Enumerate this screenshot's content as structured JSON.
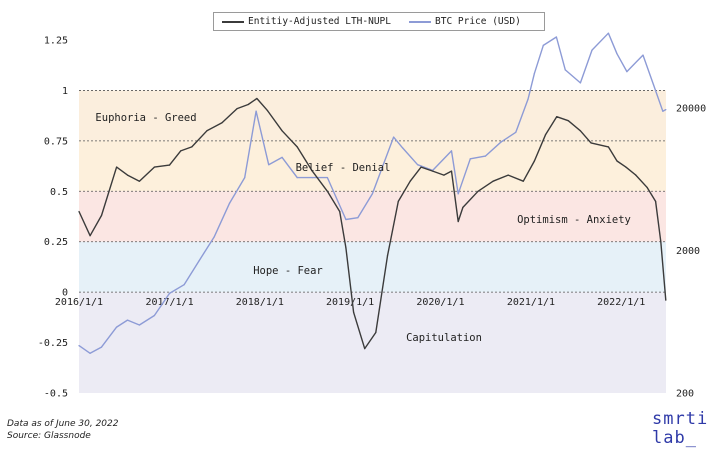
{
  "legend": {
    "lth_label": "Entitiy-Adjusted LTH-NUPL",
    "btc_label": "BTC Price (USD)"
  },
  "footnote": {
    "line1": "Data as of June 30, 2022",
    "line2": "Source: Glassnode"
  },
  "brand": {
    "line1": "smrti",
    "line2": "lab_"
  },
  "colors": {
    "lth": "#3b3b3b",
    "btc": "#8d9bd6",
    "btc_dark": "#2e3f9a",
    "euphoria": "#fbeedd",
    "belief": "#fdf0dc",
    "optimism": "#fbe6e3",
    "hope": "#e6f1f8",
    "capitulation": "#ecebf4"
  },
  "chart_data": {
    "type": "line",
    "left_axis": {
      "ylim": [
        -0.5,
        1.25
      ],
      "ticks": [
        "1.25",
        "1",
        "0.75",
        "0.5",
        "0.25",
        "0",
        "-0.25",
        "-0.5"
      ]
    },
    "right_axis": {
      "scale": "log",
      "ticks": [
        "20000",
        "2000",
        "200"
      ],
      "ylim": [
        200,
        60000
      ]
    },
    "x_ticks": [
      "2016/1/1",
      "2017/1/1",
      "2018/1/1",
      "2019/1/1",
      "2020/1/1",
      "2021/1/1",
      "2022/1/1"
    ],
    "zones": [
      {
        "label": "Euphoria - Greed",
        "from": 0.75,
        "to": 1.0
      },
      {
        "label": "Belief - Denial",
        "from": 0.5,
        "to": 0.75
      },
      {
        "label": "Optimism - Anxiety",
        "from": 0.25,
        "to": 0.5
      },
      {
        "label": "Hope - Fear",
        "from": 0.0,
        "to": 0.25
      },
      {
        "label": "Capitulation",
        "from": -0.5,
        "to": 0.0
      }
    ],
    "series": [
      {
        "name": "Entitiy-Adjusted LTH-NUPL",
        "axis": "left",
        "x": [
          "2016-01-01",
          "2016-02-15",
          "2016-04-01",
          "2016-06-01",
          "2016-07-15",
          "2016-09-01",
          "2016-11-01",
          "2017-01-01",
          "2017-02-15",
          "2017-04-01",
          "2017-06-01",
          "2017-08-01",
          "2017-10-01",
          "2017-11-15",
          "2017-12-20",
          "2018-02-01",
          "2018-04-01",
          "2018-06-01",
          "2018-08-01",
          "2018-10-01",
          "2018-11-20",
          "2018-12-15",
          "2019-01-15",
          "2019-03-01",
          "2019-04-15",
          "2019-06-01",
          "2019-07-15",
          "2019-09-01",
          "2019-10-15",
          "2019-12-01",
          "2020-01-15",
          "2020-02-15",
          "2020-03-13",
          "2020-04-01",
          "2020-06-01",
          "2020-08-01",
          "2020-10-01",
          "2020-12-01",
          "2021-01-15",
          "2021-03-01",
          "2021-04-15",
          "2021-06-01",
          "2021-07-20",
          "2021-09-01",
          "2021-11-10",
          "2021-12-15",
          "2022-01-20",
          "2022-03-01",
          "2022-04-15",
          "2022-05-20",
          "2022-06-10",
          "2022-06-30"
        ],
        "values": [
          0.4,
          0.28,
          0.38,
          0.62,
          0.58,
          0.55,
          0.62,
          0.63,
          0.7,
          0.72,
          0.8,
          0.84,
          0.91,
          0.93,
          0.96,
          0.9,
          0.8,
          0.72,
          0.6,
          0.5,
          0.4,
          0.22,
          -0.1,
          -0.28,
          -0.2,
          0.18,
          0.45,
          0.55,
          0.62,
          0.6,
          0.58,
          0.6,
          0.35,
          0.42,
          0.5,
          0.55,
          0.58,
          0.55,
          0.65,
          0.78,
          0.87,
          0.85,
          0.8,
          0.74,
          0.72,
          0.65,
          0.62,
          0.58,
          0.52,
          0.45,
          0.25,
          -0.04
        ]
      },
      {
        "name": "BTC Price (USD)",
        "axis": "right",
        "x": [
          "2016-01-01",
          "2016-02-15",
          "2016-04-01",
          "2016-06-01",
          "2016-07-15",
          "2016-09-01",
          "2016-11-01",
          "2017-01-01",
          "2017-03-01",
          "2017-05-01",
          "2017-07-01",
          "2017-09-01",
          "2017-11-01",
          "2017-12-17",
          "2018-02-06",
          "2018-04-01",
          "2018-06-01",
          "2018-08-01",
          "2018-10-01",
          "2018-12-15",
          "2019-02-01",
          "2019-04-01",
          "2019-06-26",
          "2019-08-01",
          "2019-10-01",
          "2019-12-01",
          "2020-02-15",
          "2020-03-13",
          "2020-05-01",
          "2020-07-01",
          "2020-09-01",
          "2020-11-01",
          "2020-12-20",
          "2021-01-15",
          "2021-02-20",
          "2021-04-14",
          "2021-05-20",
          "2021-07-20",
          "2021-09-05",
          "2021-11-10",
          "2021-12-15",
          "2022-01-24",
          "2022-03-30",
          "2022-05-12",
          "2022-06-18",
          "2022-06-30"
        ],
        "values": [
          430,
          380,
          420,
          580,
          650,
          600,
          700,
          1000,
          1150,
          1700,
          2500,
          4300,
          6500,
          19000,
          8000,
          9000,
          6500,
          6500,
          6500,
          3300,
          3400,
          5000,
          12500,
          10500,
          8000,
          7300,
          10000,
          5000,
          8800,
          9200,
          11500,
          13500,
          23000,
          35000,
          55000,
          63000,
          37000,
          30000,
          51000,
          67000,
          48000,
          36000,
          47000,
          29000,
          19000,
          19500
        ]
      }
    ]
  }
}
